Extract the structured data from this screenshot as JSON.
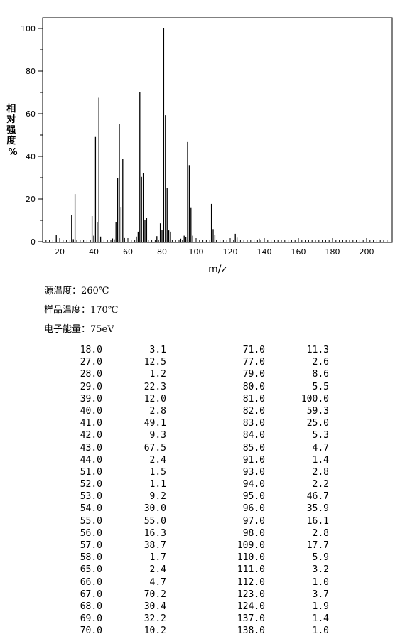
{
  "chart_data": {
    "type": "bar",
    "xlabel": "m/z",
    "ylabel": "相对强度%",
    "xlim": [
      10,
      212
    ],
    "ylim": [
      0,
      100
    ],
    "xticks": [
      20,
      40,
      60,
      80,
      100,
      120,
      140,
      160,
      180,
      200
    ],
    "yticks": [
      0,
      20,
      40,
      60,
      80,
      100
    ],
    "grid": false,
    "x": [
      18,
      27,
      28,
      29,
      39,
      40,
      41,
      42,
      43,
      44,
      51,
      52,
      53,
      54,
      55,
      56,
      57,
      58,
      65,
      66,
      67,
      68,
      69,
      70,
      71,
      77,
      79,
      80,
      81,
      82,
      83,
      84,
      85,
      91,
      93,
      94,
      95,
      96,
      97,
      98,
      109,
      110,
      111,
      112,
      123,
      124,
      137,
      138
    ],
    "values": [
      3.1,
      12.5,
      1.2,
      22.3,
      12.0,
      2.8,
      49.1,
      9.3,
      67.5,
      2.4,
      1.5,
      1.1,
      9.2,
      30.0,
      55.0,
      16.3,
      38.7,
      1.7,
      2.4,
      4.7,
      70.2,
      30.4,
      32.2,
      10.2,
      11.3,
      2.6,
      8.6,
      5.5,
      100.0,
      59.3,
      25.0,
      5.3,
      4.7,
      1.4,
      2.8,
      2.2,
      46.7,
      35.9,
      16.1,
      2.8,
      17.7,
      5.9,
      3.2,
      1.0,
      3.7,
      1.9,
      1.4,
      1.0
    ]
  },
  "conditions": {
    "source_temp": "源温度：260℃",
    "sample_temp": "样品温度：170℃",
    "electron_energy": "电子能量：75eV"
  },
  "peak_table": {
    "left": [
      [
        "18.0",
        "3.1"
      ],
      [
        "27.0",
        "12.5"
      ],
      [
        "28.0",
        "1.2"
      ],
      [
        "29.0",
        "22.3"
      ],
      [
        "39.0",
        "12.0"
      ],
      [
        "40.0",
        "2.8"
      ],
      [
        "41.0",
        "49.1"
      ],
      [
        "42.0",
        "9.3"
      ],
      [
        "43.0",
        "67.5"
      ],
      [
        "44.0",
        "2.4"
      ],
      [
        "51.0",
        "1.5"
      ],
      [
        "52.0",
        "1.1"
      ],
      [
        "53.0",
        "9.2"
      ],
      [
        "54.0",
        "30.0"
      ],
      [
        "55.0",
        "55.0"
      ],
      [
        "56.0",
        "16.3"
      ],
      [
        "57.0",
        "38.7"
      ],
      [
        "58.0",
        "1.7"
      ],
      [
        "65.0",
        "2.4"
      ],
      [
        "66.0",
        "4.7"
      ],
      [
        "67.0",
        "70.2"
      ],
      [
        "68.0",
        "30.4"
      ],
      [
        "69.0",
        "32.2"
      ],
      [
        "70.0",
        "10.2"
      ]
    ],
    "right": [
      [
        "71.0",
        "11.3"
      ],
      [
        "77.0",
        "2.6"
      ],
      [
        "79.0",
        "8.6"
      ],
      [
        "80.0",
        "5.5"
      ],
      [
        "81.0",
        "100.0"
      ],
      [
        "82.0",
        "59.3"
      ],
      [
        "83.0",
        "25.0"
      ],
      [
        "84.0",
        "5.3"
      ],
      [
        "85.0",
        "4.7"
      ],
      [
        "91.0",
        "1.4"
      ],
      [
        "93.0",
        "2.8"
      ],
      [
        "94.0",
        "2.2"
      ],
      [
        "95.0",
        "46.7"
      ],
      [
        "96.0",
        "35.9"
      ],
      [
        "97.0",
        "16.1"
      ],
      [
        "98.0",
        "2.8"
      ],
      [
        "109.0",
        "17.7"
      ],
      [
        "110.0",
        "5.9"
      ],
      [
        "111.0",
        "3.2"
      ],
      [
        "112.0",
        "1.0"
      ],
      [
        "123.0",
        "3.7"
      ],
      [
        "124.0",
        "1.9"
      ],
      [
        "137.0",
        "1.4"
      ],
      [
        "138.0",
        "1.0"
      ]
    ]
  }
}
